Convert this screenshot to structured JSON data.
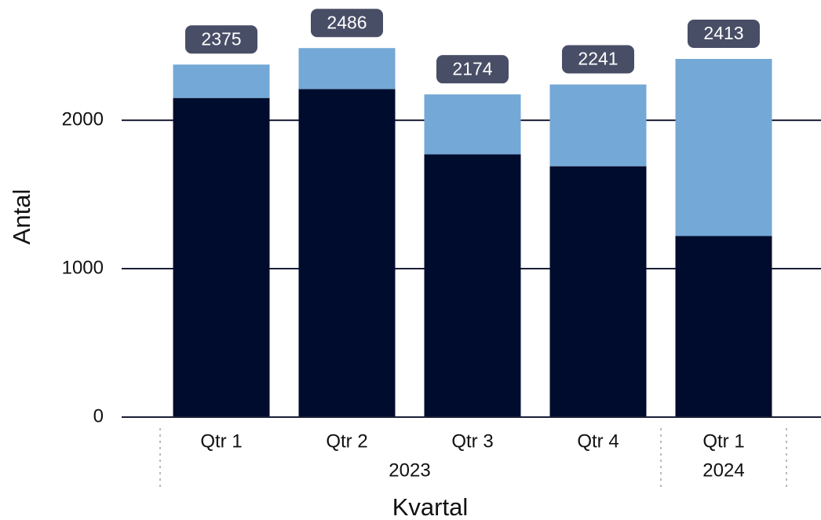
{
  "chart_data": {
    "type": "stacked_bar",
    "categories": [
      "Qtr 1",
      "Qtr 2",
      "Qtr 3",
      "Qtr 4",
      "Qtr 1"
    ],
    "category_groups": [
      "2023",
      "2023",
      "2023",
      "2023",
      "2024"
    ],
    "series": [
      {
        "color": "#000c2d",
        "values": [
          2150,
          2210,
          1770,
          1690,
          1220
        ]
      },
      {
        "color": "#74a8d6",
        "values": [
          225,
          276,
          404,
          551,
          1193
        ]
      }
    ],
    "total_labels": [
      2375,
      2486,
      2174,
      2241,
      2413
    ],
    "ylim": [
      0,
      2810
    ],
    "yticks": [
      0,
      1000,
      2000
    ],
    "grid": true,
    "x_label": "Kvartal",
    "y_label": "Antal"
  }
}
